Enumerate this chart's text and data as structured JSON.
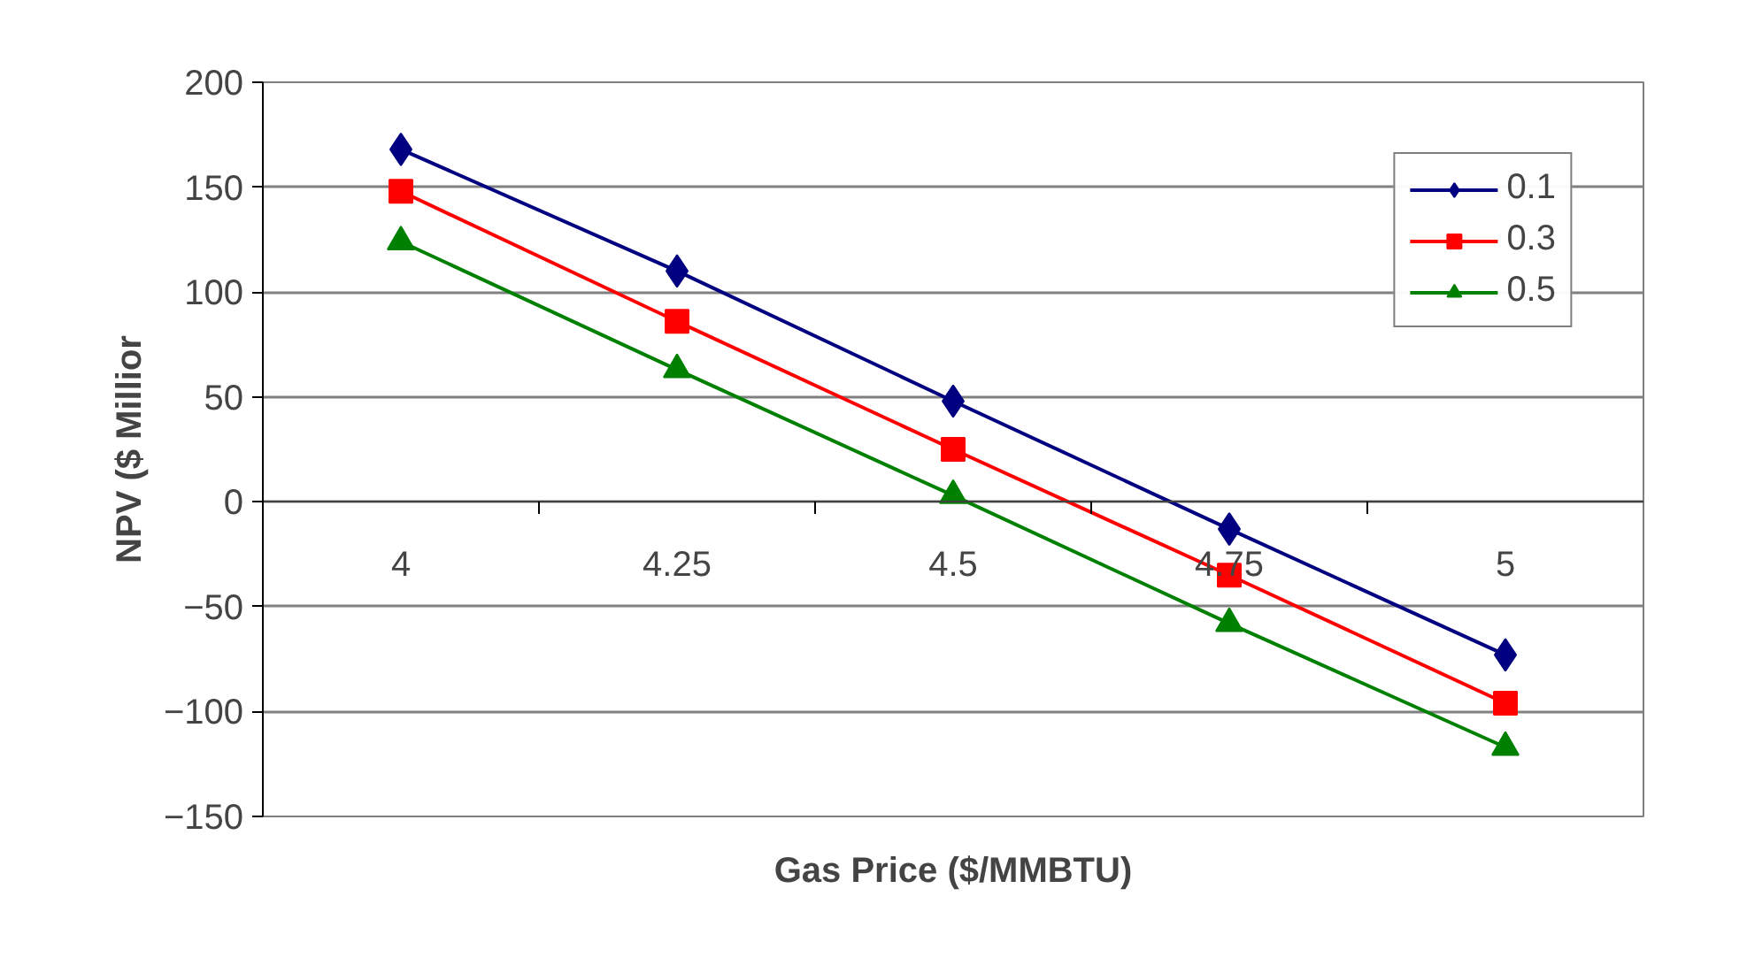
{
  "chart_data": {
    "type": "line",
    "xlabel": "Gas Price ($/MMBTU)",
    "ylabel": "NPV ($ Millior",
    "categories": [
      "4",
      "4.25",
      "4.5",
      "4.75",
      "5"
    ],
    "series": [
      {
        "name": "0.1",
        "color": "#000080",
        "marker": "diamond",
        "values": [
          168,
          110,
          48,
          -13,
          -73
        ]
      },
      {
        "name": "0.3",
        "color": "#ff0000",
        "marker": "square",
        "values": [
          148,
          86,
          25,
          -35,
          -96
        ]
      },
      {
        "name": "0.5",
        "color": "#008000",
        "marker": "triangle",
        "values": [
          124,
          63,
          3,
          -58,
          -117
        ]
      }
    ],
    "ylim": [
      -150,
      200
    ],
    "yticks": [
      -150,
      -100,
      -50,
      0,
      50,
      100,
      150,
      200
    ],
    "grid": "y",
    "legend": "top right",
    "line_style": "solid"
  }
}
